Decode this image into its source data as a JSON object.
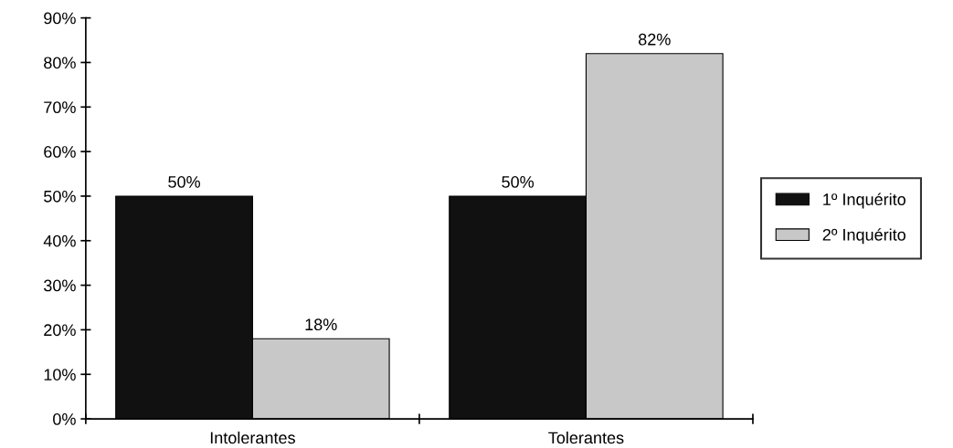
{
  "chart_data": {
    "type": "bar",
    "categories": [
      "Intolerantes",
      "Tolerantes"
    ],
    "series": [
      {
        "name": "1º Inquérito",
        "color": "#111111",
        "values": [
          50,
          50
        ],
        "value_labels": [
          "50%",
          "50%"
        ]
      },
      {
        "name": "2º Inquérito",
        "color": "#c8c8c8",
        "values": [
          18,
          82
        ],
        "value_labels": [
          "18%",
          "82%"
        ]
      }
    ],
    "ylim": [
      0,
      90
    ],
    "yticks": [
      {
        "value": 0,
        "label": "0%"
      },
      {
        "value": 10,
        "label": "10%"
      },
      {
        "value": 20,
        "label": "20%"
      },
      {
        "value": 30,
        "label": "30%"
      },
      {
        "value": 40,
        "label": "40%"
      },
      {
        "value": 50,
        "label": "50%"
      },
      {
        "value": 60,
        "label": "60%"
      },
      {
        "value": 70,
        "label": "70%"
      },
      {
        "value": 80,
        "label": "80%"
      },
      {
        "value": 90,
        "label": "90%"
      }
    ],
    "grid": false,
    "legend": "right"
  }
}
